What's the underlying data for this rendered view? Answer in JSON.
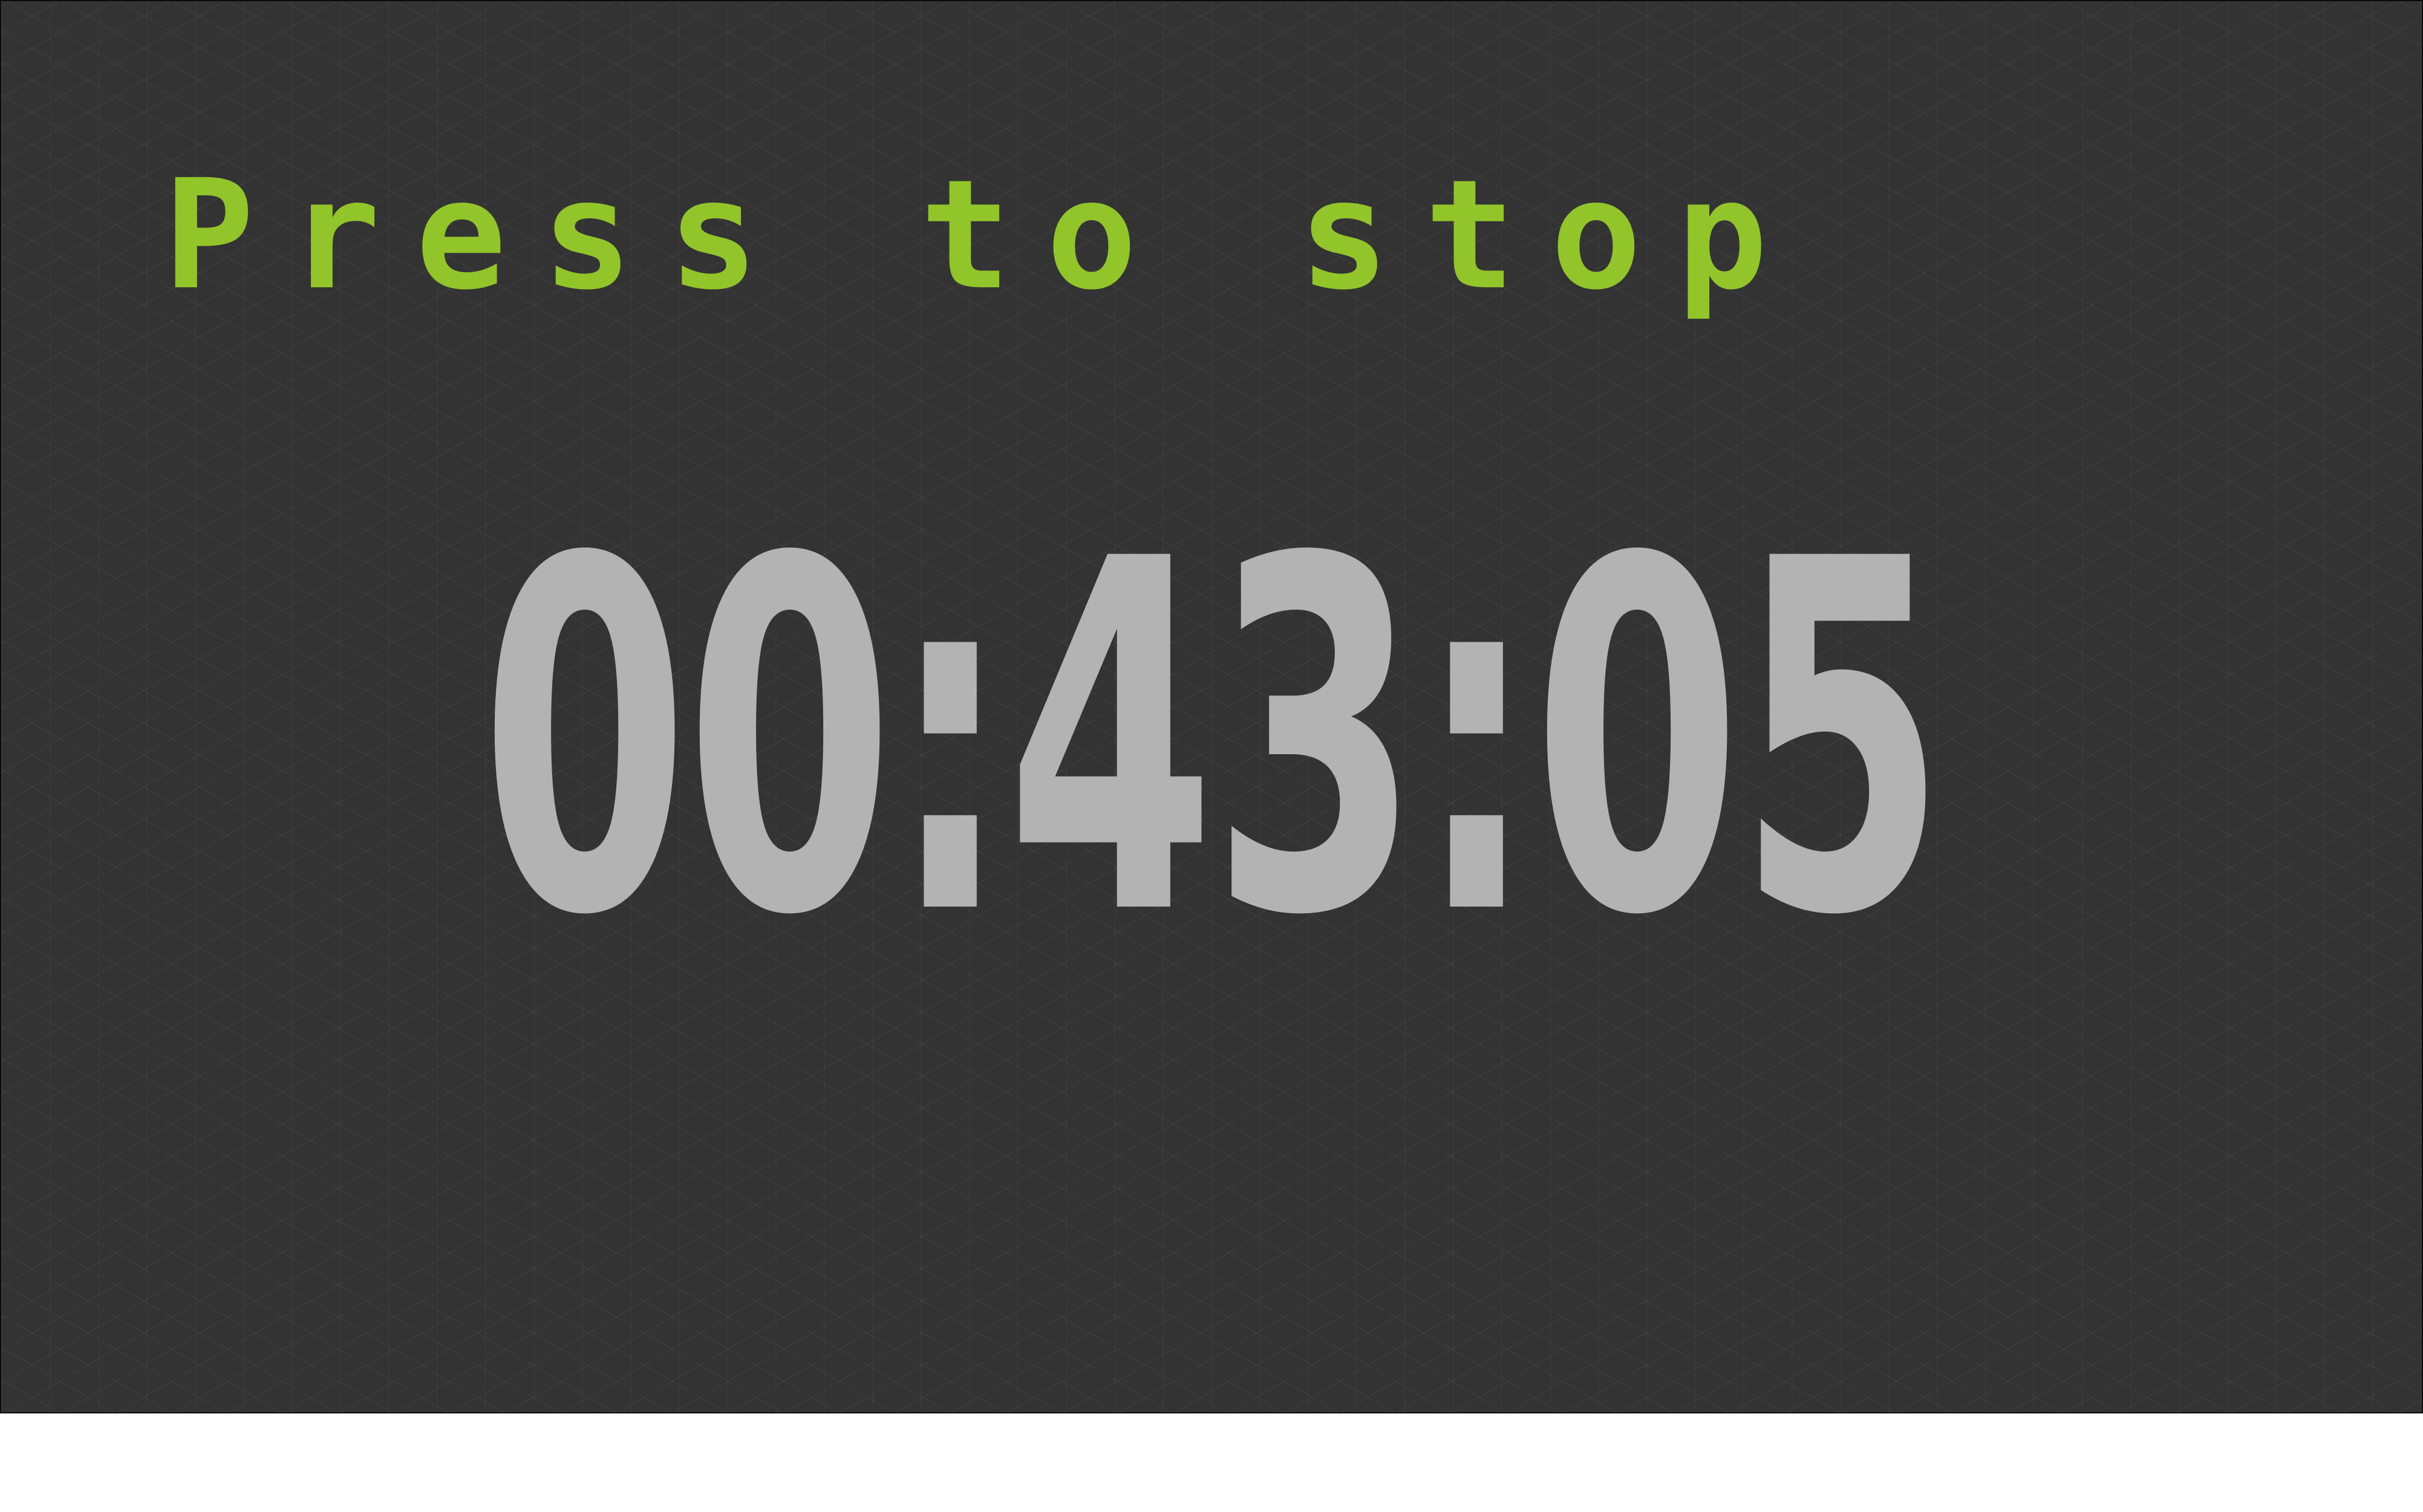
{
  "stopwatch": {
    "prompt_label": "Press to stop",
    "elapsed_time": "00:43:05"
  },
  "colors": {
    "background": "#333333",
    "prompt": "#92c52a",
    "time": "#b3b3b3"
  }
}
